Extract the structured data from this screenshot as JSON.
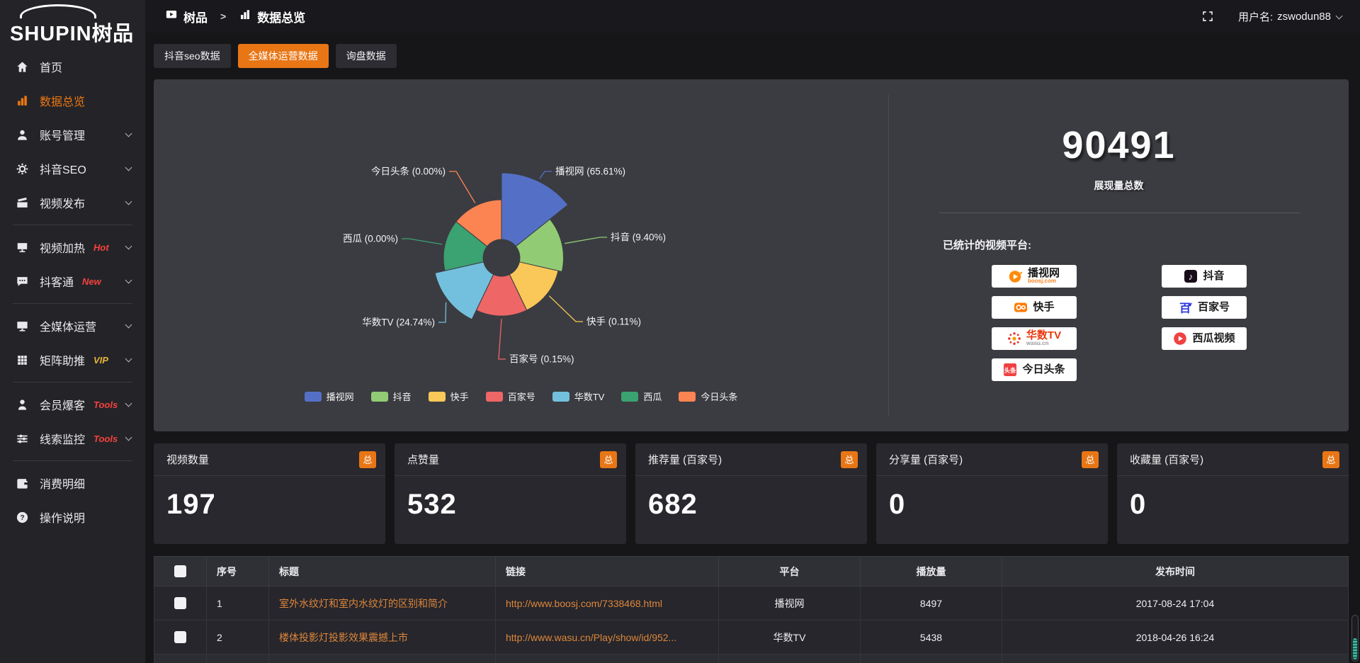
{
  "brand": {
    "logo_en": "SHUPIN",
    "logo_cn": "树品"
  },
  "topbar": {
    "breadcrumb": [
      {
        "key": "shupin",
        "label": "树品"
      },
      {
        "key": "data-overview",
        "label": "数据总览"
      }
    ],
    "separator": ">",
    "username_prefix": "用户名: ",
    "username": "zswodun88"
  },
  "sidebar": {
    "items": [
      {
        "key": "home",
        "label": "首页",
        "icon": "home-icon"
      },
      {
        "key": "data-overview",
        "label": "数据总览",
        "icon": "bar-chart-icon",
        "active": true
      },
      {
        "key": "account-manage",
        "label": "账号管理",
        "icon": "user-icon",
        "chevron": true
      },
      {
        "key": "douyin-seo",
        "label": "抖音SEO",
        "icon": "gear-icon",
        "chevron": true
      },
      {
        "key": "video-publish",
        "label": "视频发布",
        "icon": "clapper-icon",
        "chevron": true
      },
      {
        "divider": true
      },
      {
        "key": "video-heat",
        "label": "视频加热",
        "icon": "screen-icon",
        "badge": "Hot",
        "badge_color": "#f5413d",
        "chevron": true
      },
      {
        "key": "douketong",
        "label": "抖客通",
        "icon": "chat-icon",
        "badge": "New",
        "badge_color": "#f5413d",
        "chevron": true
      },
      {
        "divider": true
      },
      {
        "key": "media-operation",
        "label": "全媒体运营",
        "icon": "monitor-icon",
        "chevron": true
      },
      {
        "key": "matrix-boost",
        "label": "矩阵助推",
        "icon": "grid-icon",
        "badge": "VIP",
        "badge_color": "#e8b339",
        "chevron": true
      },
      {
        "divider": true
      },
      {
        "key": "member-baoke",
        "label": "会员爆客",
        "icon": "person-icon",
        "badge": "Tools",
        "badge_color": "#f5413d",
        "chevron": true
      },
      {
        "key": "clue-monitor",
        "label": "线索监控",
        "icon": "sliders-icon",
        "badge": "Tools",
        "badge_color": "#f5413d",
        "chevron": true
      },
      {
        "divider": true
      },
      {
        "key": "consume-detail",
        "label": "消费明细",
        "icon": "wallet-icon"
      },
      {
        "key": "operation-guide",
        "label": "操作说明",
        "icon": "question-icon"
      }
    ]
  },
  "tabs": [
    {
      "key": "douyin-seo-data",
      "label": "抖音seo数据"
    },
    {
      "key": "media-operation-data",
      "label": "全媒体运营数据",
      "active": true
    },
    {
      "key": "inquiry-data",
      "label": "询盘数据"
    }
  ],
  "chart_data": {
    "type": "pie",
    "variant": "nightingale-rose",
    "legend_position": "bottom",
    "labels": [
      "播视网",
      "抖音",
      "快手",
      "百家号",
      "华数TV",
      "西瓜",
      "今日头条"
    ],
    "values_percent": [
      65.61,
      9.4,
      0.11,
      0.15,
      24.74,
      0.0,
      0.0
    ],
    "label_texts": [
      "播视网 (65.61%)",
      "抖音 (9.40%)",
      "快手 (0.11%)",
      "百家号 (0.15%)",
      "华数TV (24.74%)",
      "西瓜 (0.00%)",
      "今日头条 (0.00%)"
    ],
    "colors": [
      "#5470c6",
      "#91cc75",
      "#fac858",
      "#ee6666",
      "#73c0de",
      "#3ba272",
      "#fc8452"
    ]
  },
  "summary": {
    "total_value": "90491",
    "total_label": "展现量总数",
    "platforms_label": "已统计的视频平台:",
    "badges_left": [
      {
        "key": "boosj",
        "icon": "boosj-icon",
        "name": "播视网",
        "sub": "boosj.com",
        "name_color": "#1a1a1a",
        "sub_color": "#f58220"
      },
      {
        "key": "kuaishou",
        "icon": "kuaishou-icon",
        "name": "快手",
        "name_color": "#1a1a1a"
      },
      {
        "key": "wasu",
        "icon": "wasu-icon",
        "name": "华数TV",
        "sub": "wasu.cn",
        "name_color": "#e8380d",
        "sub_color": "#9a9a9a"
      },
      {
        "key": "toutiao",
        "icon": "toutiao-icon",
        "name": "今日头条",
        "name_color": "#1a1a1a"
      }
    ],
    "badges_right": [
      {
        "key": "douyin",
        "icon": "douyin-icon",
        "name": "抖音",
        "name_color": "#1a1a1a"
      },
      {
        "key": "baijiahao",
        "icon": "baijiahao-icon",
        "name": "百家号",
        "name_color": "#1a1a1a"
      },
      {
        "key": "xigua",
        "icon": "xigua-icon",
        "name": "西瓜视频",
        "name_color": "#1a1a1a"
      }
    ]
  },
  "stats_cards": [
    {
      "key": "video-count",
      "title": "视频数量",
      "badge": "总",
      "value": "197"
    },
    {
      "key": "like-count",
      "title": "点赞量",
      "badge": "总",
      "value": "532"
    },
    {
      "key": "recommend-count",
      "title": "推荐量 (百家号)",
      "badge": "总",
      "value": "682"
    },
    {
      "key": "share-count",
      "title": "分享量 (百家号)",
      "badge": "总",
      "value": "0"
    },
    {
      "key": "favorite-count",
      "title": "收藏量 (百家号)",
      "badge": "总",
      "value": "0"
    }
  ],
  "table": {
    "columns": [
      "序号",
      "标题",
      "链接",
      "平台",
      "播放量",
      "发布时间"
    ],
    "rows": [
      {
        "no": "1",
        "title": "室外水纹灯和室内水纹灯的区别和简介",
        "link": "http://www.boosj.com/7338468.html",
        "platform": "播视网",
        "plays": "8497",
        "time": "2017-08-24 17:04"
      },
      {
        "no": "2",
        "title": "楼体投影灯投影效果震撼上市",
        "link": "http://www.wasu.cn/Play/show/id/952...",
        "platform": "华数TV",
        "plays": "5438",
        "time": "2018-04-26 16:24"
      }
    ]
  },
  "colors": {
    "accent": "#e87615",
    "link": "#de863b",
    "panel": "#3b3c41",
    "scroll_thumb": "#3ec0aa"
  }
}
